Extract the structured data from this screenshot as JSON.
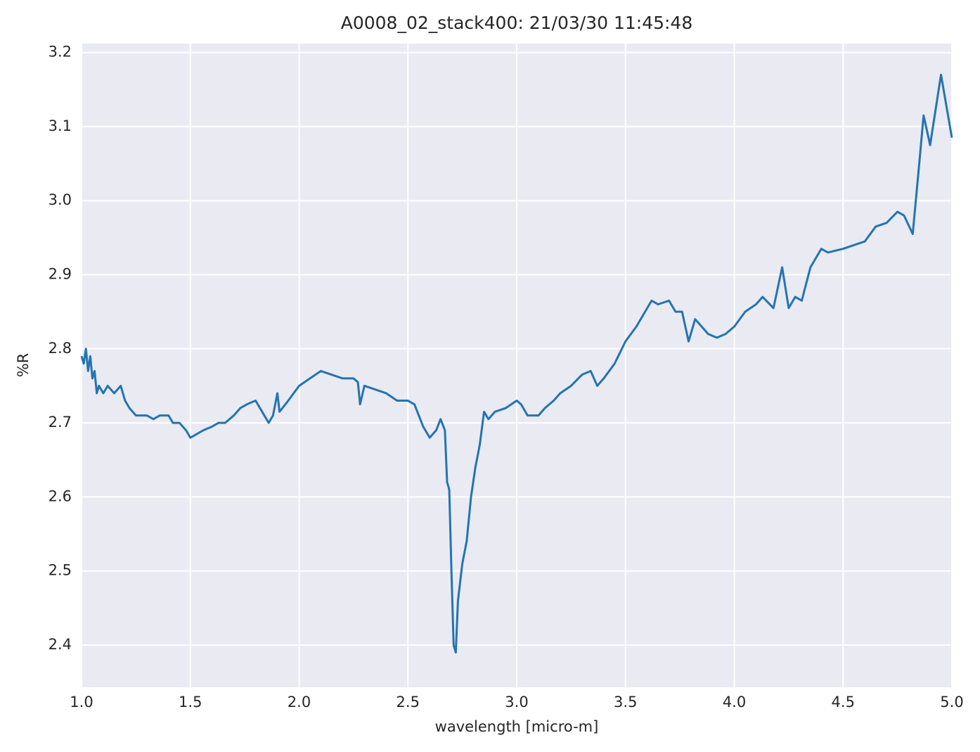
{
  "chart_data": {
    "type": "line",
    "title": "A0008_02_stack400:  21/03/30 11:45:48",
    "x_label": "wavelength [micro-m]",
    "y_label": "%R",
    "x": [
      1.0,
      1.01,
      1.02,
      1.03,
      1.04,
      1.05,
      1.06,
      1.07,
      1.08,
      1.1,
      1.12,
      1.15,
      1.18,
      1.2,
      1.22,
      1.25,
      1.28,
      1.3,
      1.33,
      1.36,
      1.4,
      1.42,
      1.45,
      1.48,
      1.5,
      1.53,
      1.56,
      1.6,
      1.63,
      1.66,
      1.7,
      1.73,
      1.76,
      1.8,
      1.83,
      1.86,
      1.88,
      1.9,
      1.91,
      1.95,
      2.0,
      2.05,
      2.1,
      2.15,
      2.2,
      2.25,
      2.27,
      2.28,
      2.3,
      2.35,
      2.4,
      2.45,
      2.5,
      2.53,
      2.55,
      2.57,
      2.6,
      2.63,
      2.65,
      2.67,
      2.68,
      2.69,
      2.7,
      2.71,
      2.72,
      2.73,
      2.75,
      2.77,
      2.79,
      2.81,
      2.83,
      2.85,
      2.87,
      2.9,
      2.95,
      3.0,
      3.02,
      3.05,
      3.1,
      3.13,
      3.17,
      3.2,
      3.25,
      3.3,
      3.34,
      3.37,
      3.4,
      3.45,
      3.5,
      3.55,
      3.6,
      3.62,
      3.65,
      3.7,
      3.73,
      3.76,
      3.79,
      3.82,
      3.85,
      3.88,
      3.92,
      3.96,
      4.0,
      4.05,
      4.1,
      4.13,
      4.18,
      4.22,
      4.25,
      4.28,
      4.31,
      4.35,
      4.4,
      4.43,
      4.5,
      4.55,
      4.6,
      4.65,
      4.7,
      4.75,
      4.78,
      4.82,
      4.85,
      4.87,
      4.9,
      4.95,
      5.0
    ],
    "series": [
      {
        "name": "%R",
        "color": "#2474b0",
        "values": [
          2.79,
          2.78,
          2.8,
          2.77,
          2.79,
          2.76,
          2.77,
          2.74,
          2.75,
          2.74,
          2.75,
          2.74,
          2.75,
          2.73,
          2.72,
          2.71,
          2.71,
          2.71,
          2.705,
          2.71,
          2.71,
          2.7,
          2.7,
          2.69,
          2.68,
          2.685,
          2.69,
          2.695,
          2.7,
          2.7,
          2.71,
          2.72,
          2.725,
          2.73,
          2.715,
          2.7,
          2.71,
          2.74,
          2.715,
          2.73,
          2.75,
          2.76,
          2.77,
          2.765,
          2.76,
          2.76,
          2.755,
          2.725,
          2.75,
          2.745,
          2.74,
          2.73,
          2.73,
          2.725,
          2.71,
          2.695,
          2.68,
          2.69,
          2.705,
          2.69,
          2.62,
          2.61,
          2.5,
          2.4,
          2.39,
          2.46,
          2.51,
          2.54,
          2.6,
          2.64,
          2.67,
          2.715,
          2.705,
          2.715,
          2.72,
          2.73,
          2.725,
          2.71,
          2.71,
          2.72,
          2.73,
          2.74,
          2.75,
          2.765,
          2.77,
          2.75,
          2.76,
          2.78,
          2.81,
          2.83,
          2.855,
          2.865,
          2.86,
          2.865,
          2.85,
          2.85,
          2.81,
          2.84,
          2.83,
          2.82,
          2.815,
          2.82,
          2.83,
          2.85,
          2.86,
          2.87,
          2.855,
          2.91,
          2.855,
          2.87,
          2.865,
          2.91,
          2.935,
          2.93,
          2.935,
          2.94,
          2.945,
          2.965,
          2.97,
          2.985,
          2.98,
          2.955,
          3.05,
          3.115,
          3.075,
          3.17,
          3.085
        ]
      }
    ],
    "xlim": [
      1.0,
      5.0
    ],
    "xticks": [
      {
        "value": 1.0,
        "label": "1.0"
      },
      1.5,
      {
        "value": 2.0,
        "label": "2.0"
      },
      2.5,
      {
        "value": 3.0,
        "label": "3.0"
      },
      3.5,
      {
        "value": 4.0,
        "label": "4.0"
      },
      4.5,
      {
        "value": 5.0,
        "label": "5.0"
      }
    ],
    "ylim": [
      2.343,
      3.212
    ],
    "yticks": [
      2.4,
      2.5,
      2.6,
      2.7,
      2.8,
      2.9,
      {
        "value": 3.0,
        "label": "3.0"
      },
      3.1,
      3.2
    ],
    "grid": true,
    "background": "#eaeaf2"
  }
}
